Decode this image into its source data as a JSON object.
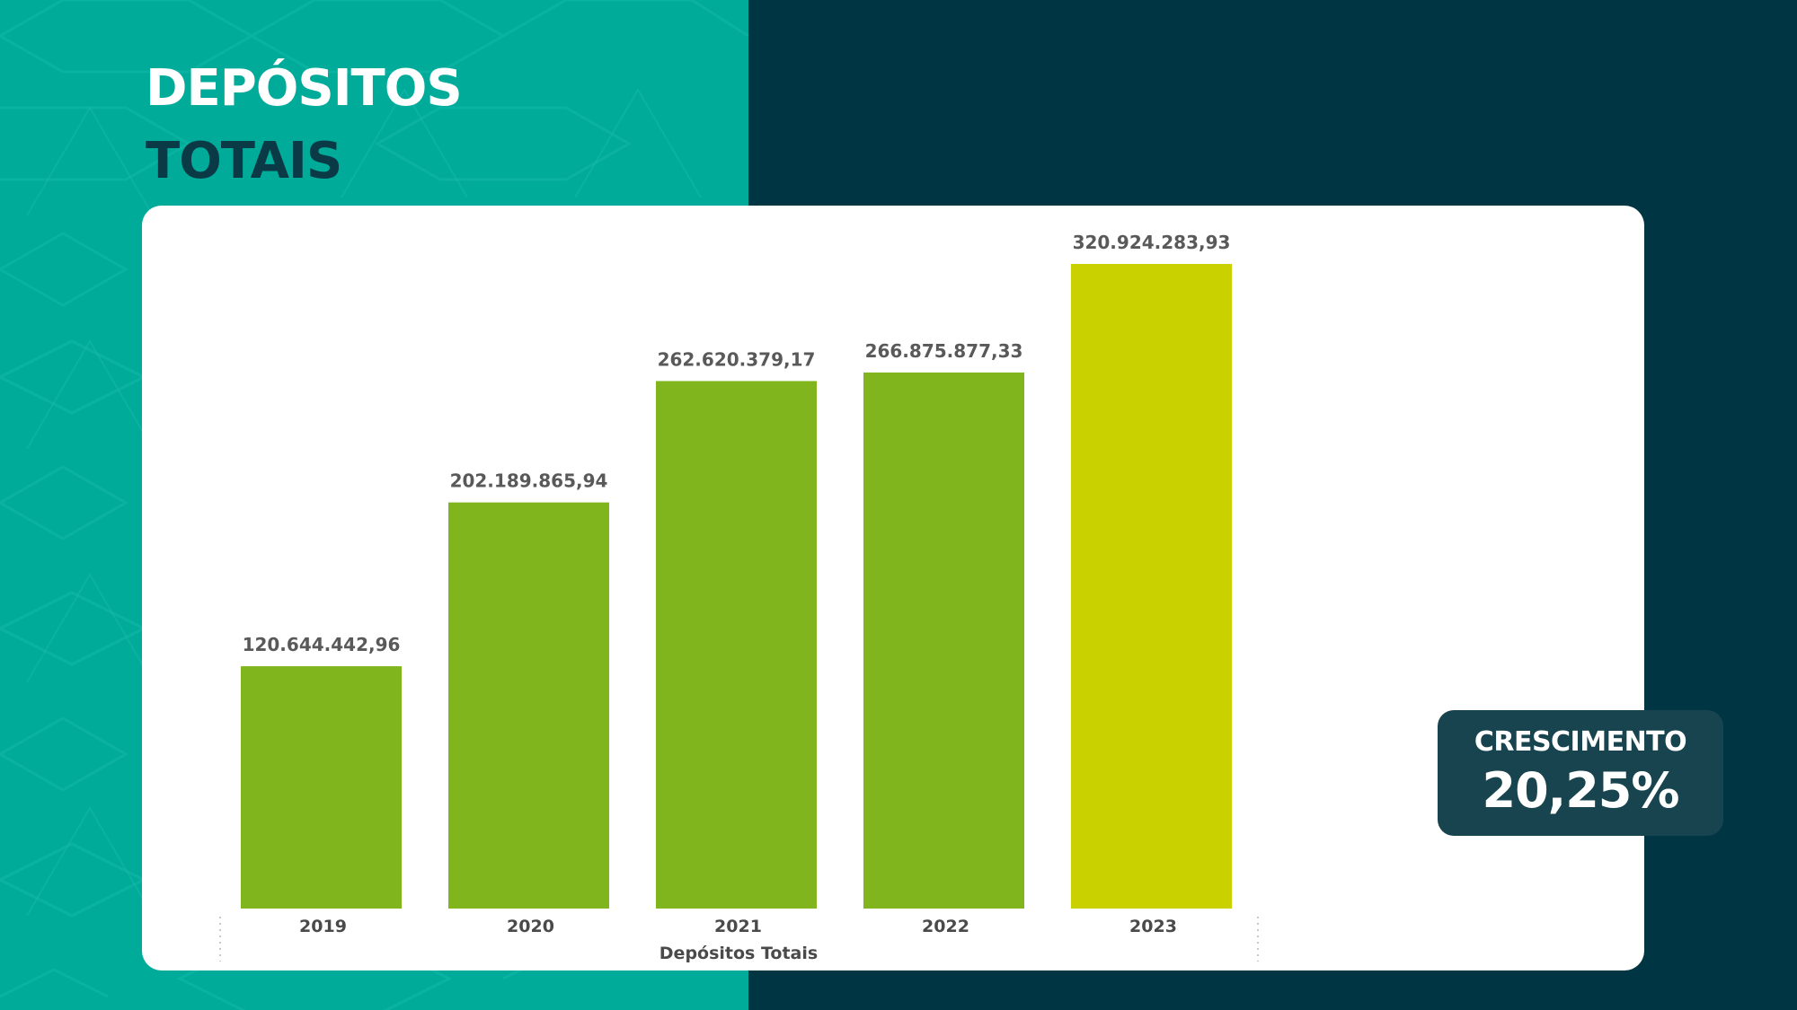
{
  "slide": {
    "title_line1": "DEPÓSITOS",
    "title_line2": "TOTAIS"
  },
  "growth": {
    "label": "CRESCIMENTO",
    "value": "20,25%"
  },
  "colors": {
    "teal": "#00ab9a",
    "dark_navy": "#003644",
    "bar_green": "#80b51d",
    "bar_highlight": "#c9d200",
    "growth_box": "#17444e"
  },
  "chart_data": {
    "type": "bar",
    "categories": [
      "2019",
      "2020",
      "2021",
      "2022",
      "2023"
    ],
    "values": [
      120644442.96,
      202189865.94,
      262620379.17,
      266875877.33,
      320924283.93
    ],
    "data_labels": [
      "120.644.442,96",
      "202.189.865,94",
      "262.620.379,17",
      "266.875.877,33",
      "320.924.283,93"
    ],
    "highlight_index": 4,
    "xlabel": "Depósitos Totais",
    "ylabel": "",
    "ylim": [
      0,
      320924283.93
    ],
    "grid": false
  }
}
